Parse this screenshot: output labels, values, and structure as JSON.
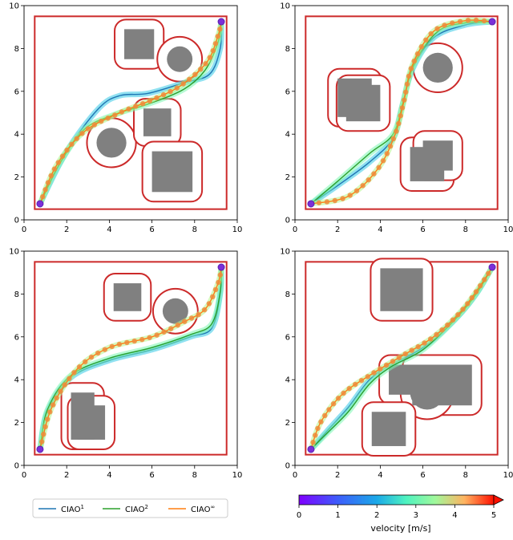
{
  "colors": {
    "boundary": "#cc2a2a",
    "obstacle": "#808080",
    "ciao1": "#1f77b4",
    "ciao2": "#2ca02c",
    "ciaoinf": "#ff7f0e"
  },
  "legend": {
    "entries": [
      {
        "base": "CIAO",
        "sup": "1",
        "color_key": "ciao1"
      },
      {
        "base": "CIAO",
        "sup": "2",
        "color_key": "ciao2"
      },
      {
        "base": "CIAO",
        "sup": "∞",
        "color_key": "ciaoinf"
      }
    ],
    "placement": "bottom-left"
  },
  "colorbar": {
    "label": "velocity [m/s]",
    "ticks": [
      "0",
      "1",
      "2",
      "3",
      "4",
      "5"
    ],
    "range": [
      0,
      5
    ],
    "colormap": "rainbow",
    "extend": "max"
  },
  "chart_data": [
    {
      "type": "line",
      "xlim": [
        0,
        10
      ],
      "ylim": [
        0,
        10
      ],
      "xticks": [
        "0",
        "2",
        "4",
        "6",
        "8",
        "10"
      ],
      "yticks": [
        "0",
        "2",
        "4",
        "6",
        "8",
        "10"
      ],
      "boundary": [
        0.5,
        0.5,
        9.5,
        9.5
      ],
      "start": [
        0.75,
        0.75
      ],
      "goal": [
        9.25,
        9.25
      ],
      "obstacles": [
        {
          "shape": "rect",
          "x0": 4.7,
          "y0": 7.5,
          "x1": 6.1,
          "y1": 8.9
        },
        {
          "shape": "circle",
          "cx": 7.3,
          "cy": 7.5,
          "r": 0.6
        },
        {
          "shape": "circle",
          "cx": 4.1,
          "cy": 3.6,
          "r": 0.7
        },
        {
          "shape": "rect",
          "x0": 5.6,
          "y0": 3.9,
          "x1": 6.9,
          "y1": 5.2
        },
        {
          "shape": "rect",
          "x0": 6.0,
          "y0": 1.3,
          "x1": 7.9,
          "y1": 3.2
        }
      ],
      "series": [
        {
          "name": "CIAO¹",
          "points": [
            [
              0.75,
              0.75
            ],
            [
              2,
              3.2
            ],
            [
              3.5,
              5.2
            ],
            [
              4.5,
              5.8
            ],
            [
              5.8,
              5.9
            ],
            [
              7.5,
              6.4
            ],
            [
              8.7,
              6.8
            ],
            [
              9.2,
              8
            ],
            [
              9.25,
              9.25
            ]
          ]
        },
        {
          "name": "CIAO²",
          "points": [
            [
              0.75,
              0.75
            ],
            [
              1.6,
              2.5
            ],
            [
              2.8,
              4.2
            ],
            [
              4.2,
              4.9
            ],
            [
              5.8,
              5.4
            ],
            [
              7.5,
              6.1
            ],
            [
              8.5,
              7
            ],
            [
              9.1,
              8.3
            ],
            [
              9.25,
              9.25
            ]
          ]
        },
        {
          "name": "CIAO∞",
          "points": [
            [
              0.75,
              0.75
            ],
            [
              1.5,
              2.5
            ],
            [
              2.8,
              4.1
            ],
            [
              4.5,
              5
            ],
            [
              6,
              5.6
            ],
            [
              7.4,
              6.3
            ],
            [
              8.6,
              7.4
            ],
            [
              9.1,
              8.6
            ],
            [
              9.25,
              9.25
            ]
          ]
        }
      ]
    },
    {
      "type": "line",
      "xlim": [
        0,
        10
      ],
      "ylim": [
        0,
        10
      ],
      "xticks": [
        "0",
        "2",
        "4",
        "6",
        "8",
        "10"
      ],
      "yticks": [
        "0",
        "2",
        "4",
        "6",
        "8",
        "10"
      ],
      "boundary": [
        0.5,
        0.5,
        9.5,
        9.5
      ],
      "start": [
        0.75,
        0.75
      ],
      "goal": [
        9.25,
        9.25
      ],
      "obstacles": [
        {
          "shape": "rect",
          "x0": 2.0,
          "y0": 4.8,
          "x1": 3.6,
          "y1": 6.6
        },
        {
          "shape": "rect",
          "x0": 2.4,
          "y0": 4.6,
          "x1": 4.0,
          "y1": 6.3
        },
        {
          "shape": "circle",
          "cx": 6.7,
          "cy": 7.1,
          "r": 0.7
        },
        {
          "shape": "rect",
          "x0": 5.4,
          "y0": 1.8,
          "x1": 7.0,
          "y1": 3.4
        },
        {
          "shape": "rect",
          "x0": 6.0,
          "y0": 2.3,
          "x1": 7.4,
          "y1": 3.7
        }
      ],
      "series": [
        {
          "name": "CIAO¹",
          "points": [
            [
              0.75,
              0.75
            ],
            [
              2,
              1.6
            ],
            [
              3.5,
              2.7
            ],
            [
              4.6,
              3.8
            ],
            [
              5,
              5.2
            ],
            [
              5.5,
              7
            ],
            [
              6.5,
              8.5
            ],
            [
              8,
              9.1
            ],
            [
              9.25,
              9.25
            ]
          ]
        },
        {
          "name": "CIAO²",
          "points": [
            [
              0.75,
              0.75
            ],
            [
              2,
              1.8
            ],
            [
              3.5,
              3.1
            ],
            [
              4.6,
              4
            ],
            [
              5.1,
              5.6
            ],
            [
              5.6,
              7.3
            ],
            [
              6.7,
              8.8
            ],
            [
              8,
              9.2
            ],
            [
              9.25,
              9.25
            ]
          ]
        },
        {
          "name": "CIAO∞",
          "points": [
            [
              0.75,
              0.75
            ],
            [
              2.5,
              1.1
            ],
            [
              3.9,
              2.4
            ],
            [
              4.7,
              4
            ],
            [
              5.1,
              5.5
            ],
            [
              5.5,
              7.2
            ],
            [
              6.5,
              8.8
            ],
            [
              8,
              9.3
            ],
            [
              9.25,
              9.25
            ]
          ]
        }
      ]
    },
    {
      "type": "line",
      "xlim": [
        0,
        10
      ],
      "ylim": [
        0,
        10
      ],
      "xticks": [
        "0",
        "2",
        "4",
        "6",
        "8",
        "10"
      ],
      "yticks": [
        "0",
        "2",
        "4",
        "6",
        "8",
        "10"
      ],
      "boundary": [
        0.5,
        0.5,
        9.5,
        9.5
      ],
      "start": [
        0.75,
        0.75
      ],
      "goal": [
        9.25,
        9.25
      ],
      "obstacles": [
        {
          "shape": "rect",
          "x0": 4.2,
          "y0": 7.2,
          "x1": 5.5,
          "y1": 8.5
        },
        {
          "shape": "circle",
          "cx": 7.1,
          "cy": 7.2,
          "r": 0.6
        },
        {
          "shape": "rect",
          "x0": 2.2,
          "y0": 1.2,
          "x1": 3.3,
          "y1": 3.4
        },
        {
          "shape": "rect",
          "x0": 2.5,
          "y0": 1.2,
          "x1": 3.8,
          "y1": 2.8
        }
      ],
      "series": [
        {
          "name": "CIAO¹",
          "points": [
            [
              0.75,
              0.75
            ],
            [
              1.1,
              2.5
            ],
            [
              2.2,
              4.1
            ],
            [
              4,
              4.9
            ],
            [
              6,
              5.4
            ],
            [
              7.8,
              6
            ],
            [
              8.8,
              6.4
            ],
            [
              9.2,
              8
            ],
            [
              9.25,
              9.25
            ]
          ]
        },
        {
          "name": "CIAO²",
          "points": [
            [
              0.75,
              0.75
            ],
            [
              1.1,
              2.6
            ],
            [
              2.2,
              4.2
            ],
            [
              4,
              5
            ],
            [
              6,
              5.5
            ],
            [
              7.8,
              6.1
            ],
            [
              8.8,
              6.6
            ],
            [
              9.2,
              8.1
            ],
            [
              9.25,
              9.25
            ]
          ]
        },
        {
          "name": "CIAO∞",
          "points": [
            [
              0.75,
              0.75
            ],
            [
              1.3,
              2.7
            ],
            [
              2.5,
              4.5
            ],
            [
              4,
              5.5
            ],
            [
              6,
              6
            ],
            [
              7.5,
              6.7
            ],
            [
              8.5,
              7.3
            ],
            [
              9.1,
              8.5
            ],
            [
              9.25,
              9.25
            ]
          ]
        }
      ]
    },
    {
      "type": "line",
      "xlim": [
        0,
        10
      ],
      "ylim": [
        0,
        10
      ],
      "xticks": [
        "0",
        "2",
        "4",
        "6",
        "8",
        "10"
      ],
      "yticks": [
        "0",
        "2",
        "4",
        "6",
        "8",
        "10"
      ],
      "boundary": [
        0.5,
        0.5,
        9.5,
        9.5
      ],
      "start": [
        0.75,
        0.75
      ],
      "goal": [
        9.25,
        9.25
      ],
      "obstacles": [
        {
          "shape": "rect",
          "x0": 4.0,
          "y0": 7.2,
          "x1": 6.0,
          "y1": 9.2
        },
        {
          "shape": "rect",
          "x0": 4.4,
          "y0": 3.3,
          "x1": 6.0,
          "y1": 4.7
        },
        {
          "shape": "rect",
          "x0": 5.5,
          "y0": 2.8,
          "x1": 8.3,
          "y1": 4.7
        },
        {
          "shape": "circle",
          "cx": 6.2,
          "cy": 3.4,
          "r": 0.8
        },
        {
          "shape": "rect",
          "x0": 3.6,
          "y0": 0.9,
          "x1": 5.2,
          "y1": 2.5
        }
      ],
      "series": [
        {
          "name": "CIAO¹",
          "points": [
            [
              0.75,
              0.75
            ],
            [
              1.5,
              1.6
            ],
            [
              2.5,
              2.7
            ],
            [
              3.5,
              4
            ],
            [
              4.5,
              4.7
            ],
            [
              6,
              5.5
            ],
            [
              7.5,
              6.8
            ],
            [
              8.5,
              8
            ],
            [
              9.25,
              9.25
            ]
          ]
        },
        {
          "name": "CIAO²",
          "points": [
            [
              0.75,
              0.75
            ],
            [
              1.5,
              1.5
            ],
            [
              2.5,
              2.5
            ],
            [
              3.5,
              3.8
            ],
            [
              4.5,
              4.6
            ],
            [
              6,
              5.4
            ],
            [
              7.5,
              6.8
            ],
            [
              8.5,
              8
            ],
            [
              9.25,
              9.25
            ]
          ]
        },
        {
          "name": "CIAO∞",
          "points": [
            [
              0.75,
              0.75
            ],
            [
              1.2,
              2
            ],
            [
              2.2,
              3.3
            ],
            [
              3.5,
              4.2
            ],
            [
              5,
              5.1
            ],
            [
              6.5,
              6
            ],
            [
              7.8,
              7.2
            ],
            [
              8.7,
              8.4
            ],
            [
              9.25,
              9.25
            ]
          ]
        }
      ]
    }
  ]
}
